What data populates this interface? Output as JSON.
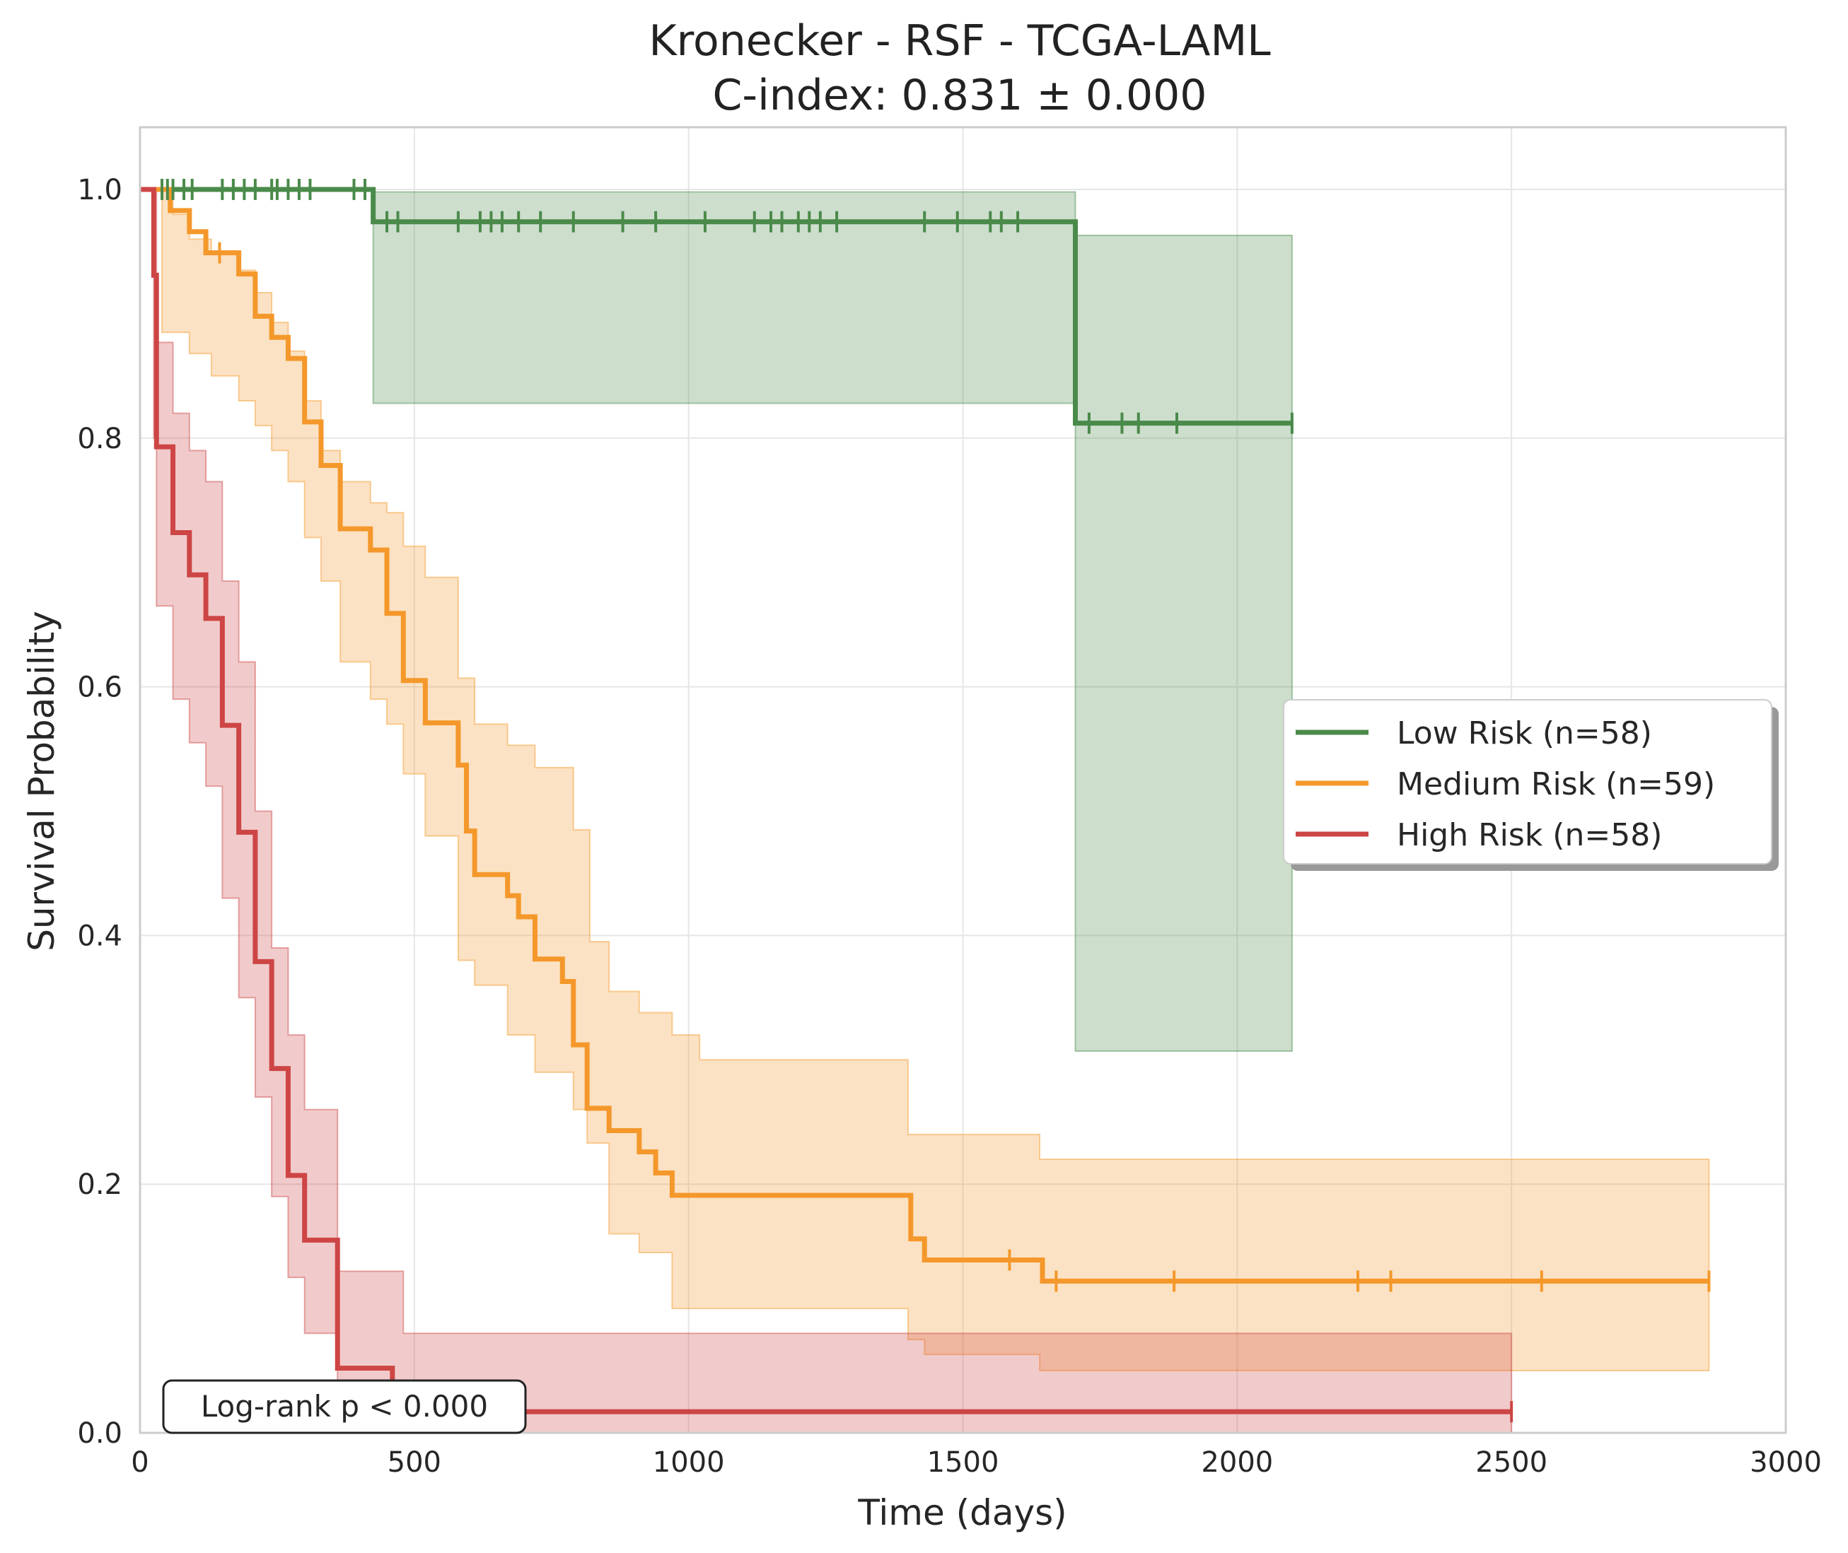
{
  "chart_data": {
    "type": "line",
    "subtype": "kaplan-meier step curves with confidence bands and censor marks",
    "title": "Kronecker - RSF - TCGA-LAML",
    "subtitle": "C-index: 0.831 ± 0.000",
    "xlabel": "Time (days)",
    "ylabel": "Survival Probability",
    "xlim": [
      0,
      3000
    ],
    "ylim": [
      0,
      1.05
    ],
    "xticks": [
      0,
      500,
      1000,
      1500,
      2000,
      2500,
      3000
    ],
    "yticks": [
      0.0,
      0.2,
      0.4,
      0.6,
      0.8,
      1.0
    ],
    "xtick_labels": [
      "0",
      "500",
      "1000",
      "1500",
      "2000",
      "2500",
      "3000"
    ],
    "ytick_labels": [
      "0.0",
      "0.2",
      "0.4",
      "0.6",
      "0.8",
      "1.0"
    ],
    "grid": true,
    "legend_position": "center-right",
    "annotation": "Log-rank p < 0.000",
    "series": [
      {
        "name": "Low Risk (n=58)",
        "color": "#4a8a4a",
        "steps": [
          [
            0,
            1.0
          ],
          [
            425,
            0.974
          ],
          [
            1705,
            0.812
          ],
          [
            2100,
            0.812
          ]
        ],
        "ci_upper": [
          [
            425,
            0.998
          ],
          [
            1705,
            0.963
          ],
          [
            2100,
            0.963
          ]
        ],
        "ci_lower": [
          [
            425,
            0.828
          ],
          [
            1705,
            0.307
          ],
          [
            2100,
            0.307
          ]
        ],
        "censor_times": [
          40,
          50,
          60,
          80,
          95,
          150,
          170,
          190,
          210,
          240,
          250,
          270,
          290,
          310,
          390,
          410,
          450,
          470,
          580,
          620,
          640,
          660,
          690,
          730,
          790,
          880,
          940,
          1030,
          1120,
          1150,
          1170,
          1200,
          1220,
          1240,
          1270,
          1430,
          1490,
          1550,
          1570,
          1600,
          1730,
          1790,
          1820,
          1890,
          2100
        ]
      },
      {
        "name": "Medium Risk (n=59)",
        "color": "#f4982b",
        "steps": [
          [
            0,
            1.0
          ],
          [
            55,
            0.983
          ],
          [
            90,
            0.966
          ],
          [
            120,
            0.949
          ],
          [
            180,
            0.932
          ],
          [
            210,
            0.898
          ],
          [
            240,
            0.881
          ],
          [
            270,
            0.864
          ],
          [
            300,
            0.813
          ],
          [
            330,
            0.778
          ],
          [
            365,
            0.727
          ],
          [
            420,
            0.71
          ],
          [
            450,
            0.659
          ],
          [
            480,
            0.605
          ],
          [
            520,
            0.571
          ],
          [
            580,
            0.537
          ],
          [
            595,
            0.484
          ],
          [
            610,
            0.449
          ],
          [
            670,
            0.432
          ],
          [
            690,
            0.415
          ],
          [
            720,
            0.381
          ],
          [
            770,
            0.363
          ],
          [
            790,
            0.312
          ],
          [
            815,
            0.261
          ],
          [
            855,
            0.243
          ],
          [
            910,
            0.226
          ],
          [
            940,
            0.209
          ],
          [
            970,
            0.191
          ],
          [
            1405,
            0.156
          ],
          [
            1430,
            0.139
          ],
          [
            1645,
            0.122
          ],
          [
            2860,
            0.122
          ]
        ],
        "ci_upper": [
          [
            40,
            1.0
          ],
          [
            60,
            0.98
          ],
          [
            90,
            0.96
          ],
          [
            130,
            0.95
          ],
          [
            180,
            0.935
          ],
          [
            210,
            0.917
          ],
          [
            240,
            0.893
          ],
          [
            270,
            0.87
          ],
          [
            300,
            0.83
          ],
          [
            330,
            0.79
          ],
          [
            365,
            0.765
          ],
          [
            420,
            0.748
          ],
          [
            450,
            0.74
          ],
          [
            480,
            0.713
          ],
          [
            520,
            0.688
          ],
          [
            580,
            0.607
          ],
          [
            610,
            0.57
          ],
          [
            670,
            0.553
          ],
          [
            720,
            0.535
          ],
          [
            790,
            0.485
          ],
          [
            820,
            0.395
          ],
          [
            855,
            0.355
          ],
          [
            910,
            0.338
          ],
          [
            970,
            0.32
          ],
          [
            1020,
            0.3
          ],
          [
            1400,
            0.24
          ],
          [
            1640,
            0.22
          ],
          [
            2860,
            0.22
          ]
        ],
        "ci_lower": [
          [
            40,
            0.885
          ],
          [
            90,
            0.868
          ],
          [
            130,
            0.85
          ],
          [
            180,
            0.83
          ],
          [
            210,
            0.81
          ],
          [
            240,
            0.79
          ],
          [
            270,
            0.765
          ],
          [
            300,
            0.72
          ],
          [
            330,
            0.685
          ],
          [
            365,
            0.62
          ],
          [
            420,
            0.59
          ],
          [
            450,
            0.57
          ],
          [
            480,
            0.53
          ],
          [
            520,
            0.48
          ],
          [
            580,
            0.38
          ],
          [
            610,
            0.36
          ],
          [
            670,
            0.32
          ],
          [
            720,
            0.29
          ],
          [
            790,
            0.26
          ],
          [
            815,
            0.233
          ],
          [
            855,
            0.16
          ],
          [
            910,
            0.145
          ],
          [
            970,
            0.1
          ],
          [
            1400,
            0.075
          ],
          [
            1430,
            0.063
          ],
          [
            1640,
            0.05
          ],
          [
            2860,
            0.05
          ]
        ],
        "censor_times": [
          145,
          1585,
          1670,
          1885,
          2220,
          2280,
          2555,
          2860
        ]
      },
      {
        "name": "High Risk (n=58)",
        "color": "#cd4545",
        "steps": [
          [
            0,
            1.0
          ],
          [
            25,
            0.931
          ],
          [
            30,
            0.793
          ],
          [
            60,
            0.724
          ],
          [
            90,
            0.69
          ],
          [
            120,
            0.655
          ],
          [
            150,
            0.569
          ],
          [
            180,
            0.483
          ],
          [
            210,
            0.379
          ],
          [
            240,
            0.293
          ],
          [
            270,
            0.207
          ],
          [
            300,
            0.155
          ],
          [
            360,
            0.052
          ],
          [
            460,
            0.017
          ],
          [
            2500,
            0.017
          ]
        ],
        "ci_upper": [
          [
            25,
            1.0
          ],
          [
            30,
            0.877
          ],
          [
            60,
            0.82
          ],
          [
            90,
            0.79
          ],
          [
            120,
            0.765
          ],
          [
            150,
            0.685
          ],
          [
            180,
            0.62
          ],
          [
            210,
            0.5
          ],
          [
            240,
            0.39
          ],
          [
            270,
            0.32
          ],
          [
            300,
            0.26
          ],
          [
            360,
            0.13
          ],
          [
            480,
            0.08
          ],
          [
            2500,
            0.08
          ]
        ],
        "ci_lower": [
          [
            25,
            0.8
          ],
          [
            30,
            0.665
          ],
          [
            60,
            0.59
          ],
          [
            90,
            0.555
          ],
          [
            120,
            0.52
          ],
          [
            150,
            0.43
          ],
          [
            180,
            0.35
          ],
          [
            210,
            0.27
          ],
          [
            240,
            0.19
          ],
          [
            270,
            0.125
          ],
          [
            300,
            0.08
          ],
          [
            360,
            0.0
          ],
          [
            2500,
            0.0
          ]
        ],
        "censor_times": [
          2500
        ]
      }
    ]
  }
}
